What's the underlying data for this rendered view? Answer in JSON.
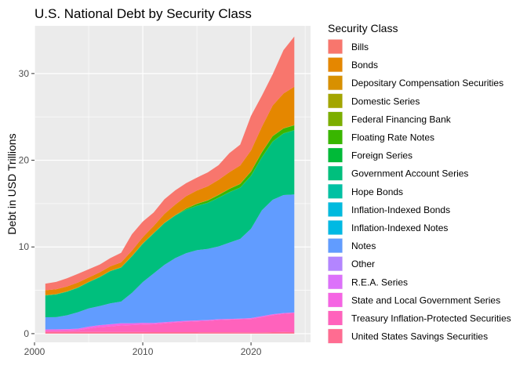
{
  "chart_data": {
    "type": "area",
    "stacked": true,
    "title": "U.S. National Debt by Security Class",
    "xlabel": "",
    "ylabel": "Debt in USD Trillions",
    "xlim": [
      2000,
      2025.5
    ],
    "ylim": [
      -1.0,
      35.5
    ],
    "x_ticks": [
      2000,
      2010,
      2020
    ],
    "y_ticks": [
      0,
      10,
      20,
      30
    ],
    "grid": true,
    "legend": {
      "title": "Security Class",
      "position": "right"
    },
    "x": [
      2001,
      2002,
      2003,
      2004,
      2005,
      2006,
      2007,
      2008,
      2009,
      2010,
      2011,
      2012,
      2013,
      2014,
      2015,
      2016,
      2017,
      2018,
      2019,
      2020,
      2021,
      2022,
      2023,
      2024
    ],
    "series": [
      {
        "name": "United States Savings Securities",
        "color": "#FF6C91",
        "values": [
          0.19,
          0.19,
          0.2,
          0.2,
          0.2,
          0.2,
          0.19,
          0.19,
          0.19,
          0.19,
          0.18,
          0.18,
          0.18,
          0.17,
          0.17,
          0.16,
          0.16,
          0.16,
          0.15,
          0.14,
          0.14,
          0.18,
          0.19,
          0.17
        ]
      },
      {
        "name": "Treasury Inflation-Protected Securities",
        "color": "#FF62BC",
        "values": [
          0.15,
          0.15,
          0.15,
          0.2,
          0.4,
          0.55,
          0.65,
          0.75,
          0.8,
          0.85,
          0.9,
          1.0,
          1.1,
          1.2,
          1.25,
          1.3,
          1.4,
          1.45,
          1.5,
          1.55,
          1.75,
          1.95,
          2.1,
          2.2
        ]
      },
      {
        "name": "State and Local Government Series",
        "color": "#F564E3",
        "values": [
          0.14,
          0.15,
          0.16,
          0.16,
          0.2,
          0.22,
          0.24,
          0.25,
          0.2,
          0.2,
          0.15,
          0.14,
          0.12,
          0.1,
          0.1,
          0.1,
          0.09,
          0.08,
          0.07,
          0.1,
          0.12,
          0.1,
          0.08,
          0.07
        ]
      },
      {
        "name": "R.E.A. Series",
        "color": "#DC71FA",
        "values": [
          0,
          0,
          0,
          0,
          0,
          0,
          0,
          0,
          0,
          0,
          0,
          0,
          0,
          0,
          0,
          0,
          0,
          0,
          0,
          0,
          0,
          0,
          0,
          0
        ]
      },
      {
        "name": "Other",
        "color": "#B385FF",
        "values": [
          0.01,
          0.01,
          0.01,
          0.01,
          0.01,
          0.01,
          0.01,
          0.01,
          0.01,
          0.01,
          0.01,
          0.01,
          0.01,
          0.01,
          0.01,
          0.01,
          0.01,
          0.01,
          0.01,
          0.01,
          0.01,
          0.01,
          0.01,
          0.01
        ]
      },
      {
        "name": "Notes",
        "color": "#619CFF",
        "values": [
          1.4,
          1.4,
          1.6,
          1.9,
          2.1,
          2.2,
          2.4,
          2.5,
          3.5,
          4.7,
          5.7,
          6.6,
          7.3,
          7.8,
          8.1,
          8.2,
          8.4,
          8.8,
          9.2,
          10.3,
          12.2,
          13.2,
          13.6,
          13.6
        ]
      },
      {
        "name": "Inflation-Indexed Notes",
        "color": "#00B9E3",
        "values": [
          0,
          0,
          0,
          0,
          0,
          0,
          0,
          0,
          0,
          0,
          0,
          0,
          0,
          0,
          0,
          0,
          0,
          0,
          0,
          0,
          0,
          0,
          0,
          0
        ]
      },
      {
        "name": "Inflation-Indexed Bonds",
        "color": "#00BADE",
        "values": [
          0,
          0,
          0,
          0,
          0,
          0,
          0,
          0,
          0,
          0,
          0,
          0,
          0,
          0,
          0,
          0,
          0,
          0,
          0,
          0,
          0,
          0,
          0,
          0
        ]
      },
      {
        "name": "Hope Bonds",
        "color": "#00C1A3",
        "values": [
          0,
          0,
          0,
          0,
          0,
          0,
          0,
          0,
          0,
          0,
          0,
          0,
          0,
          0,
          0,
          0,
          0,
          0,
          0,
          0,
          0,
          0,
          0,
          0
        ]
      },
      {
        "name": "Government Account Series",
        "color": "#00BF7D",
        "values": [
          2.5,
          2.6,
          2.7,
          2.8,
          3.0,
          3.3,
          3.7,
          3.9,
          4.2,
          4.4,
          4.6,
          4.8,
          4.9,
          5.0,
          5.1,
          5.3,
          5.6,
          5.8,
          5.9,
          6.1,
          6.1,
          6.7,
          7.1,
          7.4
        ]
      },
      {
        "name": "Foreign Series",
        "color": "#00BA38",
        "values": [
          0.03,
          0.03,
          0.03,
          0.03,
          0.03,
          0.03,
          0.03,
          0.03,
          0.03,
          0.03,
          0.03,
          0.03,
          0.03,
          0.03,
          0.03,
          0.03,
          0.03,
          0.03,
          0.03,
          0.03,
          0.03,
          0.03,
          0.03,
          0.03
        ]
      },
      {
        "name": "Floating Rate Notes",
        "color": "#39B600",
        "values": [
          0,
          0,
          0,
          0,
          0,
          0,
          0,
          0,
          0,
          0,
          0,
          0,
          0,
          0.1,
          0.2,
          0.25,
          0.3,
          0.35,
          0.4,
          0.45,
          0.55,
          0.6,
          0.55,
          0.55
        ]
      },
      {
        "name": "Federal Financing Bank",
        "color": "#7CAE00",
        "values": [
          0.01,
          0.01,
          0.01,
          0.01,
          0.01,
          0.01,
          0.01,
          0.01,
          0.01,
          0.01,
          0.01,
          0.01,
          0.01,
          0.01,
          0.01,
          0.01,
          0.01,
          0.01,
          0.01,
          0.01,
          0.01,
          0.01,
          0.01,
          0.01
        ]
      },
      {
        "name": "Domestic Series",
        "color": "#A3A500",
        "values": [
          0.03,
          0.03,
          0.03,
          0.03,
          0.03,
          0.03,
          0.03,
          0.03,
          0.03,
          0.03,
          0.03,
          0.03,
          0.03,
          0.03,
          0.03,
          0.03,
          0.03,
          0.03,
          0.03,
          0.03,
          0.03,
          0.03,
          0.03,
          0.03
        ]
      },
      {
        "name": "Depositary Compensation Securities",
        "color": "#D89000",
        "values": [
          0,
          0,
          0,
          0,
          0,
          0,
          0,
          0,
          0,
          0,
          0,
          0,
          0,
          0,
          0,
          0,
          0,
          0,
          0,
          0,
          0,
          0,
          0,
          0
        ]
      },
      {
        "name": "Bonds",
        "color": "#E58700",
        "values": [
          0.55,
          0.55,
          0.55,
          0.55,
          0.5,
          0.5,
          0.5,
          0.55,
          0.6,
          0.7,
          0.8,
          1.0,
          1.2,
          1.4,
          1.5,
          1.6,
          1.7,
          1.9,
          2.1,
          2.4,
          2.9,
          3.5,
          4.0,
          4.4
        ]
      },
      {
        "name": "Bills",
        "color": "#F8766D",
        "values": [
          0.75,
          0.85,
          0.95,
          1.0,
          0.95,
          0.9,
          0.95,
          1.1,
          1.9,
          1.8,
          1.55,
          1.7,
          1.65,
          1.5,
          1.5,
          1.6,
          1.7,
          2.2,
          2.4,
          4.0,
          3.6,
          3.6,
          5.0,
          5.8
        ]
      }
    ]
  }
}
